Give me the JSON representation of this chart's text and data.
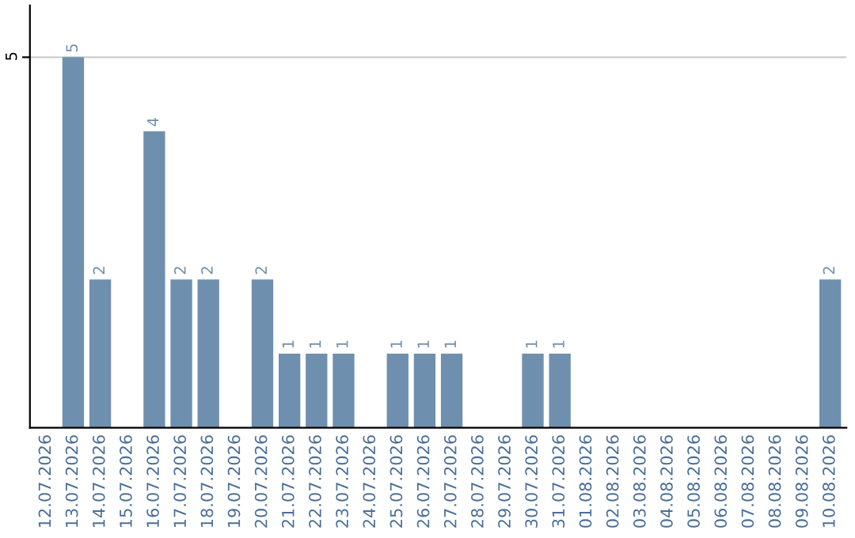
{
  "chart_data": {
    "type": "bar",
    "categories": [
      "12.07.2026",
      "13.07.2026",
      "14.07.2026",
      "15.07.2026",
      "16.07.2026",
      "17.07.2026",
      "18.07.2026",
      "19.07.2026",
      "20.07.2026",
      "21.07.2026",
      "22.07.2026",
      "23.07.2026",
      "24.07.2026",
      "25.07.2026",
      "26.07.2026",
      "27.07.2026",
      "28.07.2026",
      "29.07.2026",
      "30.07.2026",
      "31.07.2026",
      "01.08.2026",
      "02.08.2026",
      "03.08.2026",
      "04.08.2026",
      "05.08.2026",
      "06.08.2026",
      "07.08.2026",
      "08.08.2026",
      "09.08.2026",
      "10.08.2026"
    ],
    "values": [
      0,
      5,
      2,
      0,
      4,
      2,
      2,
      0,
      2,
      1,
      1,
      1,
      0,
      1,
      1,
      1,
      0,
      0,
      1,
      1,
      0,
      0,
      0,
      0,
      0,
      0,
      0,
      0,
      0,
      2
    ],
    "value_labels": [
      null,
      "5",
      "2",
      null,
      "4",
      "2",
      "2",
      null,
      "2",
      "1",
      "1",
      "1",
      null,
      "1",
      "1",
      "1",
      null,
      null,
      "1",
      "1",
      null,
      null,
      null,
      null,
      null,
      null,
      null,
      null,
      null,
      "2"
    ],
    "color": "#6f8fae",
    "ylim": [
      0,
      5.7
    ],
    "yticks": [
      5
    ],
    "grid": "y"
  }
}
